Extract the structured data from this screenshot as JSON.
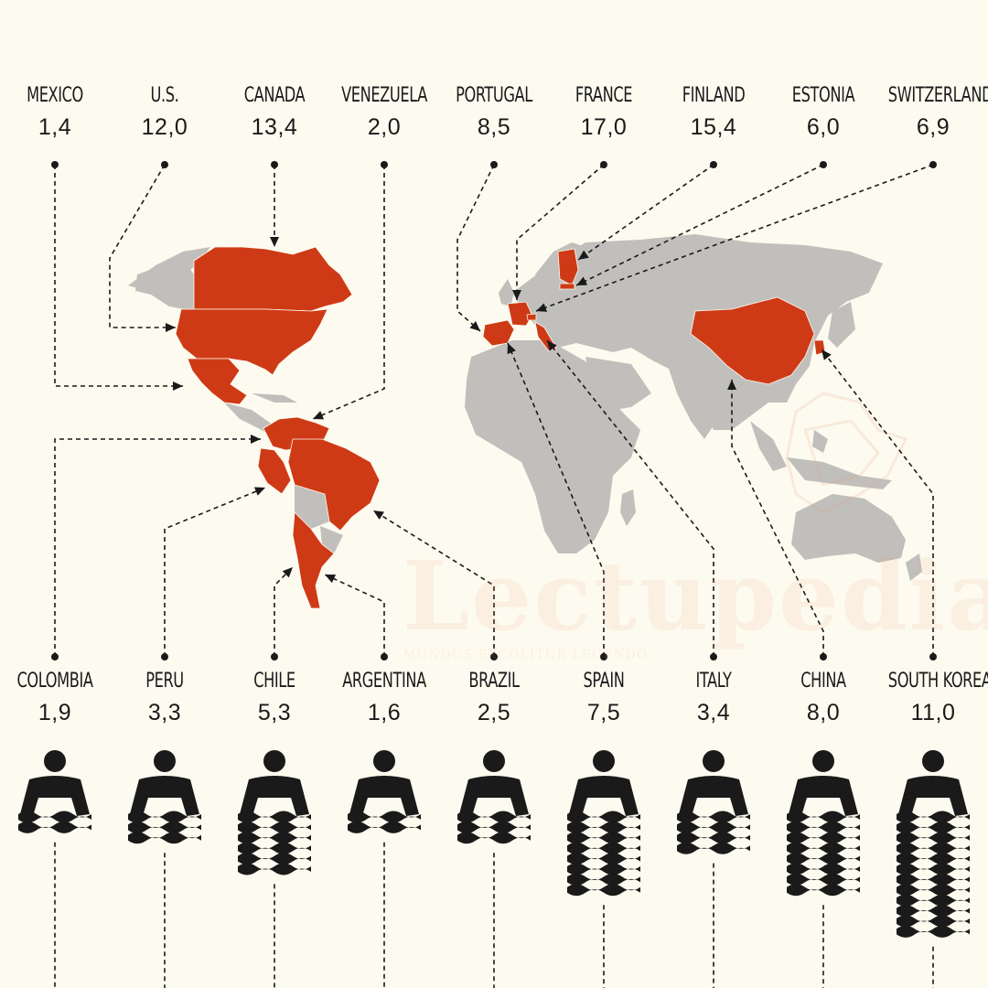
{
  "colors": {
    "background": "#fdfbef",
    "land": "#c1bfbc",
    "highlight": "#cf3a16",
    "ink": "#1a1a1a"
  },
  "watermark": {
    "title": "Lectupedia",
    "motto": "MUNDUS·EXCOLITUR·LEGENDO"
  },
  "top_countries": [
    {
      "name": "MEXICO",
      "value": "1,4"
    },
    {
      "name": "U.S.",
      "value": "12,0"
    },
    {
      "name": "CANADA",
      "value": "13,4"
    },
    {
      "name": "VENEZUELA",
      "value": "2,0"
    },
    {
      "name": "PORTUGAL",
      "value": "8,5"
    },
    {
      "name": "FRANCE",
      "value": "17,0"
    },
    {
      "name": "FINLAND",
      "value": "15,4"
    },
    {
      "name": "ESTONIA",
      "value": "6,0"
    },
    {
      "name": "SWITZERLAND",
      "value": "6,9"
    }
  ],
  "bottom_countries": [
    {
      "name": "COLOMBIA",
      "value": "1,9"
    },
    {
      "name": "PERU",
      "value": "3,3"
    },
    {
      "name": "CHILE",
      "value": "5,3"
    },
    {
      "name": "ARGENTINA",
      "value": "1,6"
    },
    {
      "name": "BRAZIL",
      "value": "2,5"
    },
    {
      "name": "SPAIN",
      "value": "7,5"
    },
    {
      "name": "ITALY",
      "value": "3,4"
    },
    {
      "name": "CHINA",
      "value": "8,0"
    },
    {
      "name": "SOUTH KOREA",
      "value": "11,0"
    }
  ],
  "icons": {
    "reader": "person-reading-book-icon",
    "marker": "dot-marker-icon"
  }
}
